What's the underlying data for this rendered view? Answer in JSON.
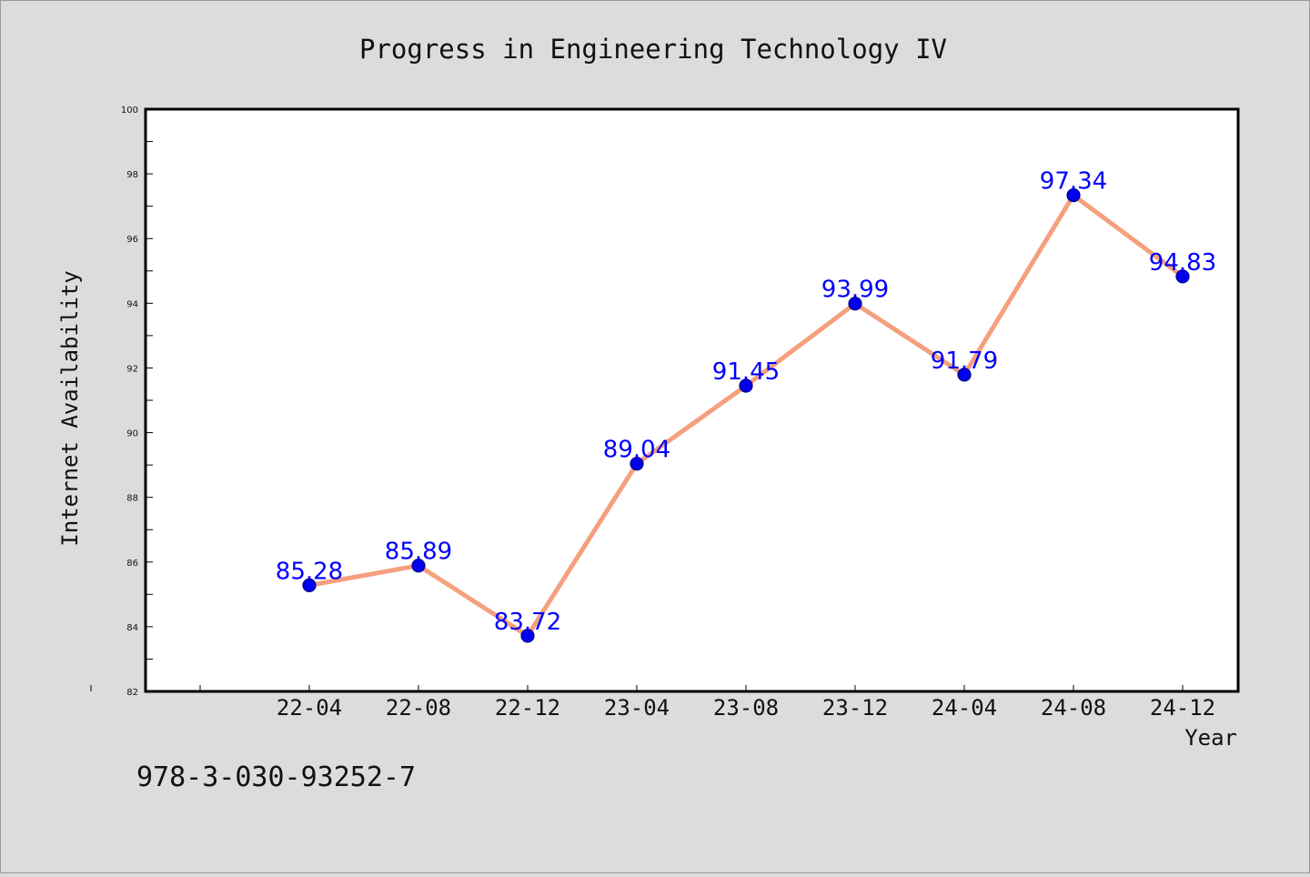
{
  "chart_data": {
    "type": "line",
    "title": "Progress in Engineering Technology IV",
    "xlabel": "Year",
    "ylabel": "Internet Availability",
    "categories": [
      "22-04",
      "22-08",
      "22-12",
      "23-04",
      "23-08",
      "23-12",
      "24-04",
      "24-08",
      "24-12"
    ],
    "series": [
      {
        "values": [
          85.28,
          85.89,
          83.72,
          89.04,
          91.45,
          93.99,
          91.79,
          97.34,
          94.83
        ],
        "labels": [
          "85.28",
          "85.89",
          "83.72",
          "89.04",
          "91.45",
          "93.99",
          "91.79",
          "97.34",
          "94.83"
        ],
        "line_color": "#f4a07e",
        "marker_color": "#0000ee",
        "label_color": "#0000ff"
      }
    ],
    "ylim": [
      82,
      100
    ],
    "yticks": [
      "82",
      "84",
      "86",
      "88",
      "90",
      "92",
      "94",
      "96",
      "98",
      "100"
    ],
    "grid": false,
    "legend": "none"
  },
  "footer": {
    "isbn": "978-3-030-93252-7"
  },
  "colors": {
    "background": "#dcdcdc",
    "plot_area": "#ffffff",
    "axis": "#000000"
  }
}
